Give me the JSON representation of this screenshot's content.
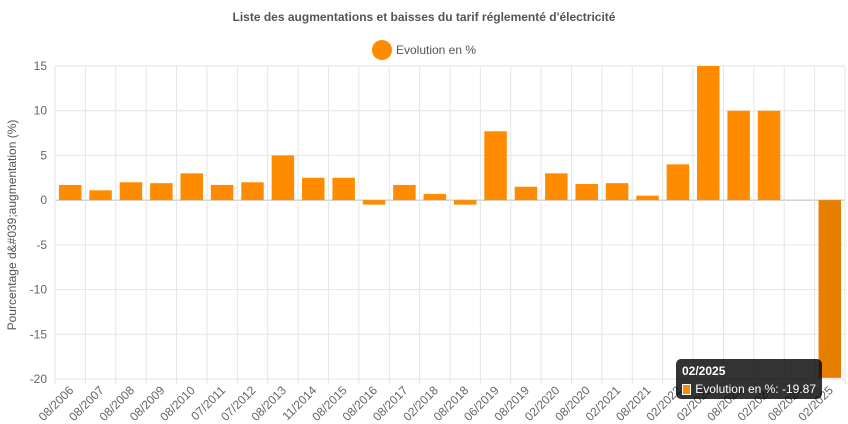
{
  "chart_data": {
    "type": "bar",
    "title": "Liste des augmentations et baisses du tarif réglementé d'électricité",
    "ylabel": "Pourcentage d&#039;augmentation (%)",
    "xlabel": "",
    "ylim": [
      -20,
      15
    ],
    "yticks": [
      15,
      10,
      5,
      0,
      -5,
      -10,
      -15,
      -20
    ],
    "grid": true,
    "legend_position": "top-center",
    "categories": [
      "08/2006",
      "08/2007",
      "08/2008",
      "08/2009",
      "08/2010",
      "07/2011",
      "07/2012",
      "08/2013",
      "11/2014",
      "08/2015",
      "08/2016",
      "08/2017",
      "02/2018",
      "08/2018",
      "06/2019",
      "08/2019",
      "02/2020",
      "08/2020",
      "02/2021",
      "08/2021",
      "02/2022",
      "02/2023",
      "08/2023",
      "02/2024",
      "08/2024",
      "02/2025"
    ],
    "series": [
      {
        "name": "Evolution en %",
        "color": "#ff8c00",
        "values": [
          1.7,
          1.1,
          2.0,
          1.9,
          3.0,
          1.7,
          2.0,
          5.0,
          2.5,
          2.5,
          -0.5,
          1.7,
          0.7,
          -0.5,
          7.7,
          1.5,
          3.0,
          1.8,
          1.9,
          0.5,
          4.0,
          15.0,
          10.0,
          10.0,
          0,
          -19.87
        ]
      }
    ],
    "highlight_index": 25,
    "highlight_color": "#e67e00"
  },
  "tooltip": {
    "title": "02/2025",
    "label": "Evolution en %: -19.87"
  }
}
